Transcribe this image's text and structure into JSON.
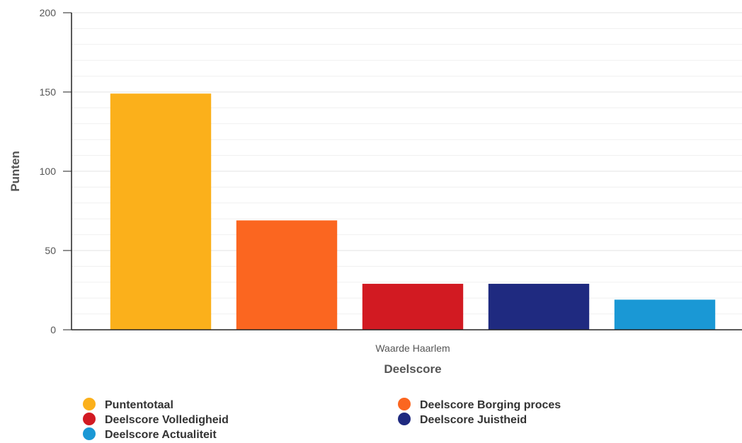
{
  "chart_data": {
    "type": "bar",
    "xlabel": "Deelscore",
    "ylabel": "Punten",
    "categories": [
      "Waarde Haarlem"
    ],
    "ylim": [
      0,
      200
    ],
    "yticks": [
      0,
      50,
      100,
      150,
      200
    ],
    "grid": true,
    "legend_position": "bottom",
    "series": [
      {
        "name": "Puntentotaal",
        "values": [
          149
        ],
        "color": "#fbb01b"
      },
      {
        "name": "Deelscore Borging proces",
        "values": [
          69
        ],
        "color": "#fb6620"
      },
      {
        "name": "Deelscore Volledigheid",
        "values": [
          29
        ],
        "color": "#d21a22"
      },
      {
        "name": "Deelscore Juistheid",
        "values": [
          29
        ],
        "color": "#1f2a80"
      },
      {
        "name": "Deelscore Actualiteit",
        "values": [
          19
        ],
        "color": "#1a98d5"
      }
    ]
  }
}
